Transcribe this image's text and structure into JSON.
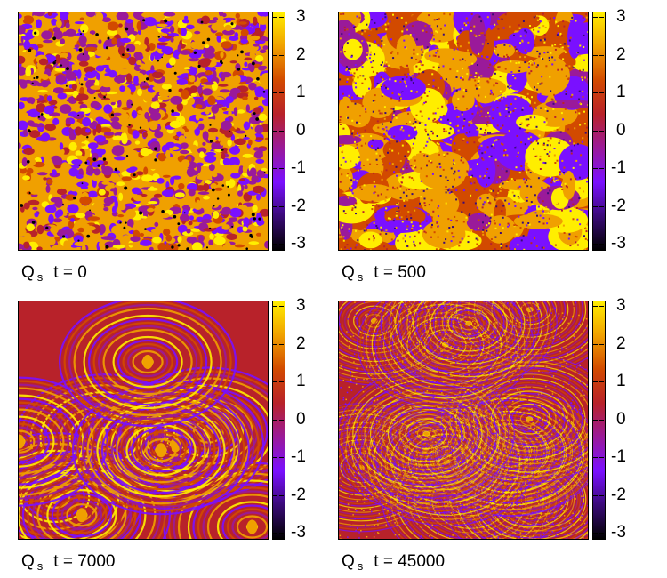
{
  "chart_data": [
    {
      "type": "heatmap",
      "caption": {
        "symbol": "Q",
        "subscript": "s",
        "time": "t = 0"
      },
      "colorbar": {
        "min": -3,
        "max": 3,
        "ticks": [
          "3",
          "2",
          "1",
          "0",
          "-1",
          "-2",
          "-3"
        ]
      },
      "palette": [
        "#000000",
        "#3a0a78",
        "#7a10ff",
        "#9a1a9a",
        "#b8222a",
        "#d24a00",
        "#f0a000",
        "#ffee00"
      ]
    },
    {
      "type": "heatmap",
      "caption": {
        "symbol": "Q",
        "subscript": "s",
        "time": "t = 500"
      },
      "colorbar": {
        "min": -3,
        "max": 3,
        "ticks": [
          "3",
          "2",
          "1",
          "0",
          "-1",
          "-2",
          "-3"
        ]
      },
      "palette": [
        "#000000",
        "#3a0a78",
        "#7a10ff",
        "#9a1a9a",
        "#b8222a",
        "#d24a00",
        "#f0a000",
        "#ffee00"
      ]
    },
    {
      "type": "heatmap",
      "caption": {
        "symbol": "Q",
        "subscript": "s",
        "time": "t = 7000"
      },
      "colorbar": {
        "min": -3,
        "max": 3,
        "ticks": [
          "3",
          "2",
          "1",
          "0",
          "-1",
          "-2",
          "-3"
        ]
      },
      "palette": [
        "#000000",
        "#3a0a78",
        "#7a10ff",
        "#9a1a9a",
        "#b8222a",
        "#d24a00",
        "#f0a000",
        "#ffee00"
      ]
    },
    {
      "type": "heatmap",
      "caption": {
        "symbol": "Q",
        "subscript": "s",
        "time": "t = 45000"
      },
      "colorbar": {
        "min": -3,
        "max": 3,
        "ticks": [
          "3",
          "2",
          "1",
          "0",
          "-1",
          "-2",
          "-3"
        ]
      },
      "palette": [
        "#000000",
        "#3a0a78",
        "#7a10ff",
        "#9a1a9a",
        "#b8222a",
        "#d24a00",
        "#f0a000",
        "#ffee00"
      ]
    }
  ]
}
